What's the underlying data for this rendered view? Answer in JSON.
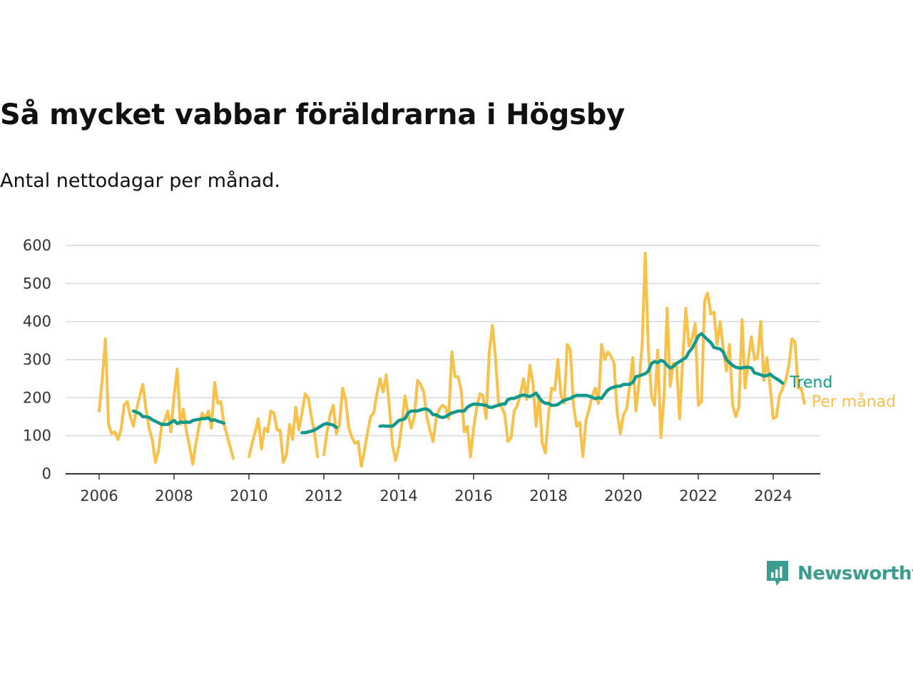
{
  "chart_data": {
    "type": "line",
    "title": "Så mycket vabbar föräldrarna i Högsby",
    "subtitle": "Antal nettodagar per månad.",
    "xlabel": "",
    "ylabel": "",
    "xlim": [
      2005.1,
      2025.3
    ],
    "ylim": [
      0,
      600
    ],
    "x_ticks": [
      2006,
      2008,
      2010,
      2012,
      2014,
      2016,
      2018,
      2020,
      2022,
      2024
    ],
    "y_ticks": [
      0,
      100,
      200,
      300,
      400,
      500,
      600
    ],
    "grid": true,
    "legend": "inline-right",
    "series": [
      {
        "name": "Per månad",
        "color": "#f9c04a",
        "start": [
          2006,
          1
        ],
        "values": [
          165,
          250,
          355,
          130,
          105,
          110,
          90,
          115,
          180,
          190,
          150,
          125,
          170,
          205,
          235,
          170,
          120,
          90,
          30,
          60,
          125,
          140,
          165,
          110,
          205,
          275,
          130,
          170,
          110,
          70,
          25,
          80,
          125,
          160,
          145,
          165,
          120,
          240,
          185,
          190,
          130,
          100,
          70,
          40,
          null,
          null,
          null,
          null,
          45,
          80,
          110,
          145,
          65,
          120,
          110,
          165,
          160,
          115,
          115,
          30,
          50,
          130,
          90,
          175,
          115,
          160,
          210,
          200,
          150,
          105,
          45,
          null,
          50,
          110,
          155,
          180,
          105,
          130,
          225,
          195,
          120,
          95,
          80,
          85,
          20,
          60,
          110,
          150,
          160,
          210,
          250,
          215,
          260,
          175,
          75,
          35,
          70,
          130,
          205,
          155,
          120,
          150,
          245,
          235,
          215,
          150,
          115,
          85,
          145,
          170,
          180,
          175,
          145,
          320,
          255,
          255,
          220,
          110,
          125,
          45,
          120,
          175,
          210,
          205,
          145,
          320,
          390,
          305,
          185,
          175,
          155,
          85,
          95,
          165,
          180,
          210,
          250,
          195,
          285,
          240,
          125,
          205,
          80,
          55,
          155,
          225,
          220,
          300,
          205,
          185,
          340,
          325,
          180,
          125,
          135,
          45,
          140,
          170,
          205,
          225,
          185,
          340,
          300,
          320,
          310,
          290,
          160,
          105,
          155,
          170,
          230,
          305,
          165,
          240,
          340,
          580,
          325,
          205,
          180,
          325,
          95,
          200,
          435,
          230,
          290,
          290,
          145,
          300,
          435,
          335,
          355,
          395,
          180,
          190,
          455,
          475,
          420,
          425,
          340,
          400,
          330,
          270,
          340,
          180,
          150,
          175,
          405,
          225,
          300,
          360,
          300,
          305,
          400,
          245,
          305,
          230,
          145,
          150,
          205,
          225,
          245,
          285,
          355,
          345,
          225,
          225,
          185
        ]
      },
      {
        "name": "Trend",
        "color": "#12998a",
        "start": [
          2006,
          12
        ],
        "values": [
          165,
          162,
          158,
          150,
          150,
          148,
          142,
          138,
          134,
          130,
          130,
          130,
          135,
          140,
          132,
          136,
          135,
          136,
          135,
          140,
          142,
          143,
          145,
          145,
          147,
          140,
          142,
          138,
          136,
          133,
          null,
          null,
          null,
          null,
          null,
          null,
          null,
          null,
          null,
          null,
          null,
          null,
          null,
          null,
          null,
          null,
          null,
          null,
          null,
          null,
          null,
          null,
          null,
          null,
          108,
          108,
          110,
          112,
          115,
          120,
          125,
          130,
          132,
          130,
          128,
          122,
          null,
          null,
          null,
          null,
          null,
          null,
          null,
          null,
          null,
          null,
          null,
          null,
          null,
          125,
          126,
          125,
          125,
          125,
          132,
          140,
          142,
          145,
          160,
          165,
          165,
          165,
          168,
          170,
          170,
          165,
          155,
          155,
          150,
          148,
          150,
          155,
          160,
          162,
          165,
          165,
          165,
          175,
          180,
          183,
          183,
          182,
          181,
          180,
          175,
          175,
          178,
          180,
          183,
          183,
          195,
          198,
          198,
          202,
          205,
          207,
          205,
          203,
          207,
          212,
          200,
          190,
          185,
          185,
          180,
          180,
          182,
          188,
          193,
          196,
          198,
          203,
          206,
          206,
          206,
          206,
          204,
          201,
          197,
          200,
          198,
          210,
          220,
          225,
          228,
          230,
          230,
          235,
          235,
          235,
          240,
          255,
          257,
          260,
          263,
          270,
          290,
          295,
          292,
          298,
          295,
          285,
          278,
          282,
          290,
          295,
          300,
          305,
          320,
          330,
          345,
          362,
          368,
          360,
          352,
          345,
          332,
          330,
          328,
          320,
          300,
          292,
          285,
          280,
          278,
          278,
          280,
          280,
          278,
          265,
          263,
          260,
          257,
          258,
          262,
          255,
          250,
          245,
          238
        ]
      }
    ]
  },
  "brand": {
    "name": "Newsworthy",
    "icon": "newsworthy-logo-icon",
    "color": "#3b9c8f"
  }
}
